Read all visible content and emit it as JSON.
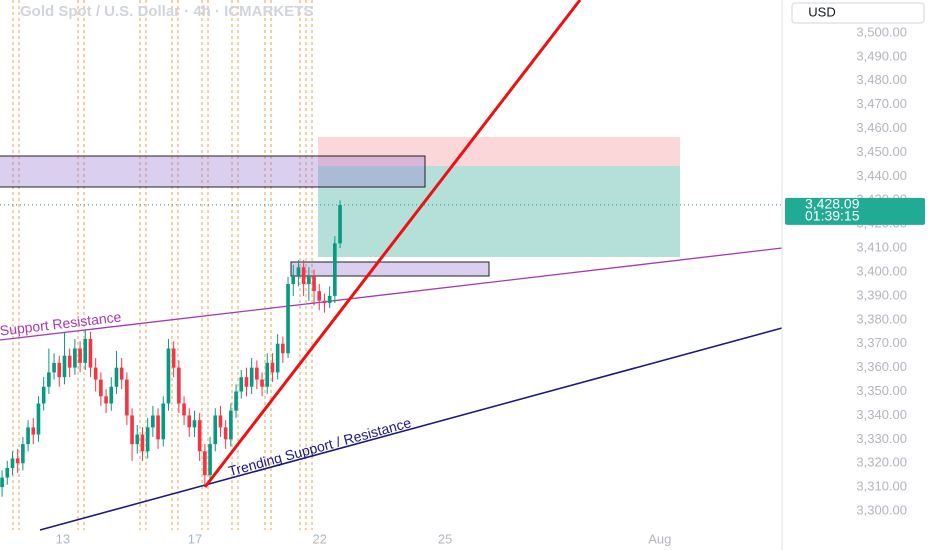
{
  "chart_data": {
    "type": "candlestick",
    "title": "Gold Spot / U.S. Dollar · 4h · ICMARKETS",
    "currency": "USD",
    "last_price": 3428.09,
    "last_price_label": "3,428.09",
    "countdown": "01:39:15",
    "annotations": [
      "Support Resistance",
      "Trending Support / Resistance"
    ],
    "up_color": "#089981",
    "down_color": "#f23645",
    "grid": false,
    "x": [
      0,
      1,
      2,
      3,
      4,
      5,
      6,
      7,
      8,
      9,
      10,
      11,
      12,
      13,
      14,
      15,
      16,
      17,
      18,
      19,
      20,
      21,
      22,
      23,
      24,
      25,
      26,
      27,
      28,
      29,
      30,
      31,
      32,
      33,
      34,
      35,
      36,
      37,
      38,
      39,
      40,
      41,
      42,
      43,
      44,
      45,
      46,
      47,
      48,
      49,
      50,
      51,
      52,
      53,
      54,
      55,
      56,
      57,
      58,
      59,
      60,
      61,
      62,
      63,
      64,
      65
    ],
    "open": [
      3310,
      3314,
      3318,
      3322,
      3320,
      3328,
      3335,
      3332,
      3345,
      3352,
      3358,
      3362,
      3356,
      3365,
      3360,
      3368,
      3362,
      3372,
      3360,
      3355,
      3348,
      3345,
      3352,
      3360,
      3355,
      3340,
      3328,
      3332,
      3325,
      3335,
      3340,
      3330,
      3345,
      3368,
      3360,
      3345,
      3340,
      3335,
      3338,
      3325,
      3315,
      3328,
      3340,
      3335,
      3330,
      3342,
      3350,
      3356,
      3352,
      3360,
      3355,
      3352,
      3362,
      3358,
      3370,
      3366,
      3395,
      3398,
      3402,
      3395,
      3398,
      3392,
      3388,
      3387,
      3390,
      3412
    ],
    "high": [
      3317,
      3321,
      3325,
      3326,
      3331,
      3338,
      3339,
      3348,
      3356,
      3368,
      3366,
      3365,
      3375,
      3368,
      3372,
      3371,
      3376,
      3375,
      3364,
      3358,
      3351,
      3356,
      3367,
      3364,
      3358,
      3343,
      3336,
      3335,
      3339,
      3344,
      3343,
      3348,
      3372,
      3371,
      3363,
      3348,
      3343,
      3342,
      3341,
      3328,
      3331,
      3343,
      3344,
      3338,
      3345,
      3353,
      3359,
      3360,
      3364,
      3363,
      3358,
      3366,
      3366,
      3374,
      3373,
      3398,
      3403,
      3405,
      3405,
      3402,
      3401,
      3395,
      3391,
      3394,
      3415,
      3430
    ],
    "low": [
      3306,
      3311,
      3315,
      3316,
      3317,
      3325,
      3328,
      3329,
      3342,
      3349,
      3355,
      3352,
      3353,
      3356,
      3357,
      3358,
      3359,
      3356,
      3350,
      3344,
      3341,
      3342,
      3349,
      3351,
      3336,
      3321,
      3324,
      3321,
      3322,
      3331,
      3326,
      3327,
      3342,
      3356,
      3341,
      3336,
      3331,
      3331,
      3321,
      3310,
      3312,
      3325,
      3331,
      3326,
      3327,
      3339,
      3347,
      3348,
      3349,
      3351,
      3348,
      3349,
      3354,
      3355,
      3362,
      3364,
      3390,
      3394,
      3390,
      3388,
      3386,
      3384,
      3383,
      3385,
      3387,
      3410
    ],
    "close": [
      3314,
      3318,
      3322,
      3320,
      3328,
      3335,
      3332,
      3345,
      3352,
      3358,
      3362,
      3356,
      3365,
      3360,
      3368,
      3362,
      3372,
      3360,
      3355,
      3348,
      3345,
      3352,
      3360,
      3355,
      3340,
      3328,
      3332,
      3325,
      3335,
      3340,
      3330,
      3345,
      3368,
      3360,
      3345,
      3340,
      3335,
      3338,
      3325,
      3315,
      3328,
      3340,
      3335,
      3330,
      3342,
      3350,
      3356,
      3352,
      3360,
      3355,
      3352,
      3362,
      3358,
      3370,
      3366,
      3395,
      3398,
      3402,
      3395,
      3398,
      3392,
      3388,
      3387,
      3390,
      3412,
      3428
    ],
    "xlim": [
      -0.4,
      150
    ],
    "xticks": [
      {
        "value": 11.7,
        "label": "13"
      },
      {
        "value": 37.1,
        "label": "17"
      },
      {
        "value": 61.1,
        "label": "22"
      },
      {
        "value": 85.2,
        "label": "25"
      },
      {
        "value": 126.5,
        "label": "Aug"
      }
    ],
    "ylim": [
      3283.7,
      3513.8
    ],
    "yticks": [
      {
        "value": 3300,
        "label": "3,300.00"
      },
      {
        "value": 3310,
        "label": "3,310.00"
      },
      {
        "value": 3320,
        "label": "3,320.00"
      },
      {
        "value": 3330,
        "label": "3,330.00"
      },
      {
        "value": 3340,
        "label": "3,340.00"
      },
      {
        "value": 3350,
        "label": "3,350.00"
      },
      {
        "value": 3360,
        "label": "3,360.00"
      },
      {
        "value": 3370,
        "label": "3,370.00"
      },
      {
        "value": 3380,
        "label": "3,380.00"
      },
      {
        "value": 3390,
        "label": "3,390.00"
      },
      {
        "value": 3400,
        "label": "3,400.00"
      },
      {
        "value": 3410,
        "label": "3,410.00"
      },
      {
        "value": 3420,
        "label": "3,420.00"
      },
      {
        "value": 3430,
        "label": "3,430.00"
      },
      {
        "value": 3440,
        "label": "3,440.00"
      },
      {
        "value": 3450,
        "label": "3,450.00"
      },
      {
        "value": 3460,
        "label": "3,460.00"
      },
      {
        "value": 3470,
        "label": "3,470.00"
      },
      {
        "value": 3480,
        "label": "3,480.00"
      },
      {
        "value": 3490,
        "label": "3,490.00"
      },
      {
        "value": 3500,
        "label": "3,500.00"
      }
    ]
  }
}
